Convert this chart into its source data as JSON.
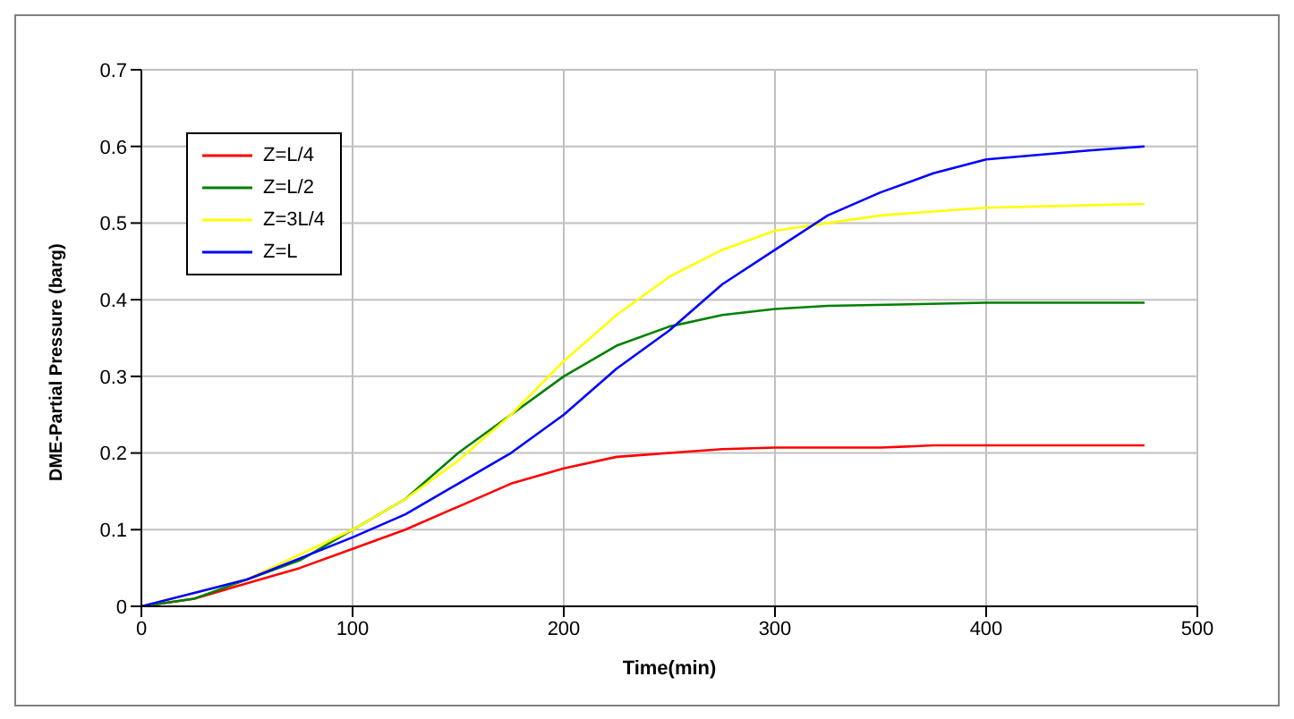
{
  "chart_data": {
    "type": "line",
    "xlabel": "Time(min)",
    "ylabel": "DME-Partial Pressure (barg)",
    "xlim": [
      0,
      500
    ],
    "xticks": [
      0,
      100,
      200,
      300,
      400,
      500
    ],
    "ylim": [
      0,
      0.7
    ],
    "yticks": [
      0,
      0.1,
      0.2,
      0.3,
      0.4,
      0.5,
      0.6,
      0.7
    ],
    "grid": true,
    "legend": "top left",
    "marker": "none",
    "line_style": "solid",
    "series": [
      {
        "name": "Z=L/4",
        "color": "#ff0000",
        "x": [
          0,
          25,
          50,
          75,
          100,
          125,
          150,
          175,
          200,
          225,
          250,
          275,
          300,
          350,
          375,
          475
        ],
        "values": [
          0,
          0.01,
          0.03,
          0.05,
          0.075,
          0.1,
          0.13,
          0.16,
          0.18,
          0.195,
          0.2,
          0.205,
          0.207,
          0.207,
          0.21,
          0.21
        ]
      },
      {
        "name": "Z=L/2",
        "color": "#008000",
        "x": [
          0,
          25,
          50,
          75,
          100,
          125,
          150,
          175,
          200,
          225,
          250,
          275,
          300,
          325,
          400,
          475
        ],
        "values": [
          0,
          0.01,
          0.035,
          0.06,
          0.1,
          0.14,
          0.2,
          0.25,
          0.3,
          0.34,
          0.365,
          0.38,
          0.388,
          0.392,
          0.396,
          0.396
        ]
      },
      {
        "name": "Z=3L/4",
        "color": "#ffff00",
        "x": [
          0,
          50,
          100,
          125,
          150,
          175,
          200,
          225,
          250,
          275,
          300,
          350,
          400,
          475
        ],
        "values": [
          0,
          0.035,
          0.1,
          0.14,
          0.19,
          0.25,
          0.32,
          0.38,
          0.43,
          0.465,
          0.49,
          0.51,
          0.52,
          0.525
        ]
      },
      {
        "name": "Z=L",
        "color": "#0000ff",
        "x": [
          0,
          50,
          100,
          125,
          150,
          175,
          200,
          225,
          250,
          275,
          300,
          325,
          350,
          375,
          400,
          450,
          475
        ],
        "values": [
          0,
          0.035,
          0.09,
          0.12,
          0.16,
          0.2,
          0.25,
          0.31,
          0.36,
          0.42,
          0.465,
          0.51,
          0.54,
          0.565,
          0.583,
          0.595,
          0.6
        ]
      }
    ]
  }
}
